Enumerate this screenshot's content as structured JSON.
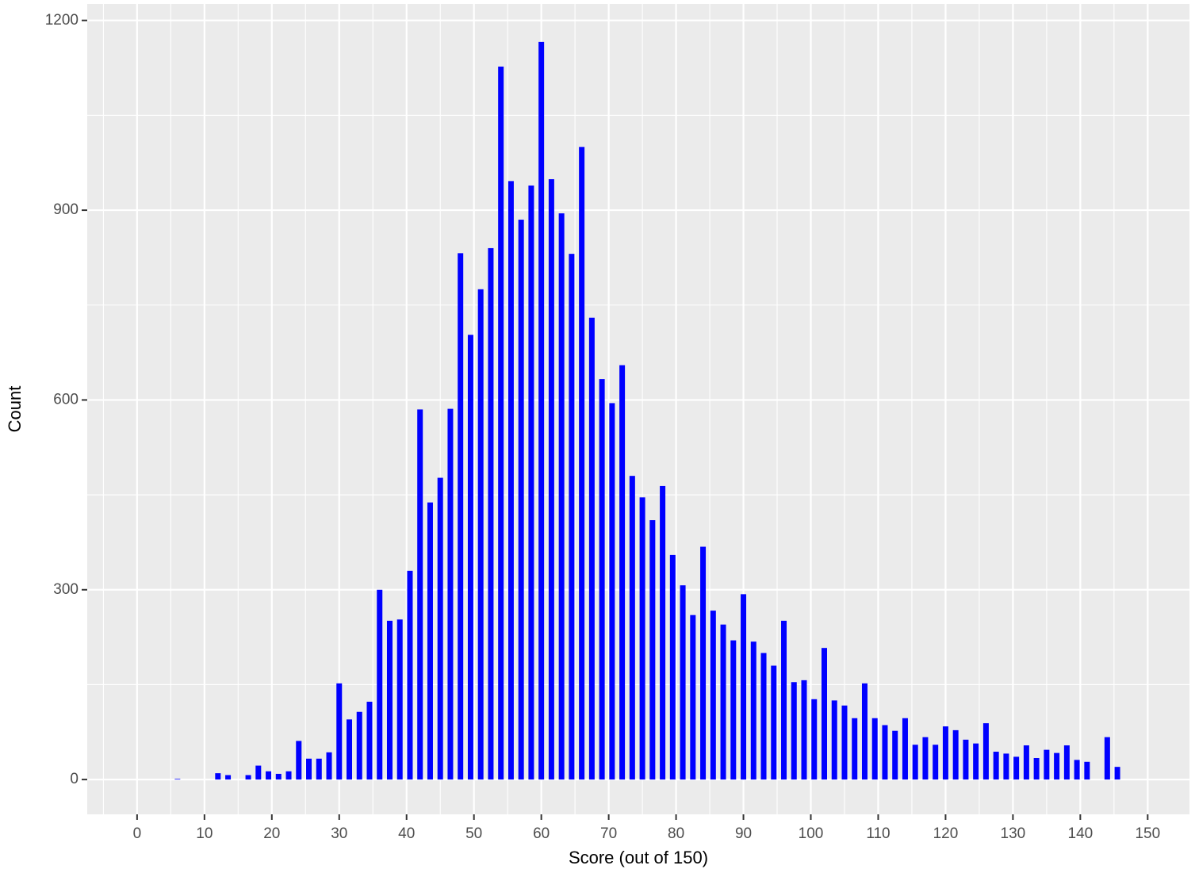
{
  "chart_data": {
    "type": "bar",
    "x_label": "Score (out of 150)",
    "y_label": "Count",
    "x": [
      6,
      12,
      13.5,
      16.5,
      18,
      19.5,
      21,
      22.5,
      24,
      25.5,
      27,
      28.5,
      30,
      31.5,
      33,
      34.5,
      36,
      37.5,
      39,
      40.5,
      42,
      43.5,
      45,
      46.5,
      48,
      49.5,
      51,
      52.5,
      54,
      55.5,
      57,
      58.5,
      60,
      61.5,
      63,
      64.5,
      66,
      67.5,
      69,
      70.5,
      72,
      73.5,
      75,
      76.5,
      78,
      79.5,
      81,
      82.5,
      84,
      85.5,
      87,
      88.5,
      90,
      91.5,
      93,
      94.5,
      96,
      97.5,
      99,
      100.5,
      102,
      103.5,
      105,
      106.5,
      108,
      109.5,
      111,
      112.5,
      114,
      115.5,
      117,
      118.5,
      120,
      121.5,
      123,
      124.5,
      126,
      127.5,
      129,
      130.5,
      132,
      133.5,
      135,
      136.5,
      138,
      139.5,
      141,
      144,
      145.5
    ],
    "values": [
      1,
      10,
      7,
      7,
      22,
      13,
      9,
      13,
      61,
      33,
      33,
      43,
      152,
      95,
      107,
      123,
      300,
      251,
      253,
      330,
      585,
      438,
      477,
      586,
      832,
      703,
      775,
      840,
      1127,
      946,
      885,
      939,
      1166,
      949,
      895,
      831,
      1000,
      730,
      633,
      595,
      655,
      480,
      446,
      410,
      464,
      355,
      307,
      260,
      368,
      267,
      245,
      220,
      293,
      218,
      200,
      180,
      251,
      154,
      157,
      127,
      208,
      125,
      117,
      97,
      152,
      97,
      86,
      77,
      97,
      55,
      67,
      55,
      84,
      78,
      63,
      57,
      89,
      44,
      41,
      36,
      54,
      34,
      47,
      42,
      54,
      31,
      28,
      67,
      20
    ],
    "color": "#0000ff",
    "xlim": [
      -7.4,
      156.2
    ],
    "ylim": [
      -55,
      1226
    ],
    "xticks": [
      0,
      10,
      20,
      30,
      40,
      50,
      60,
      70,
      80,
      90,
      100,
      110,
      120,
      130,
      140,
      150
    ],
    "yticks": [
      0,
      300,
      600,
      900,
      1200
    ],
    "grid": true
  }
}
